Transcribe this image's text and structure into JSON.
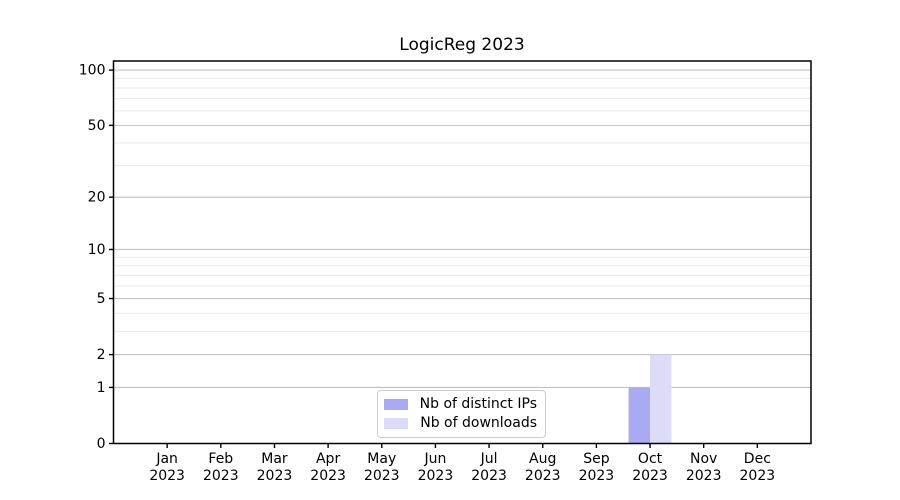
{
  "chart_data": {
    "type": "bar",
    "title": "LogicReg 2023",
    "categories": [
      "Jan",
      "Feb",
      "Mar",
      "Apr",
      "May",
      "Jun",
      "Jul",
      "Aug",
      "Sep",
      "Oct",
      "Nov",
      "Dec"
    ],
    "category_year": "2023",
    "series": [
      {
        "name": "Nb of distinct IPs",
        "color": "#aaaaf2",
        "values": [
          0,
          0,
          0,
          0,
          0,
          0,
          0,
          0,
          0,
          1,
          0,
          0
        ]
      },
      {
        "name": "Nb of downloads",
        "color": "#dcdcf8",
        "values": [
          0,
          0,
          0,
          0,
          0,
          0,
          0,
          0,
          0,
          2,
          0,
          0
        ]
      }
    ],
    "yscale": "log1p",
    "ylim": [
      0,
      112
    ],
    "yticks_major": [
      0,
      1,
      2,
      5,
      10,
      20,
      50,
      100
    ],
    "yticks_minor": [
      3,
      4,
      6,
      7,
      8,
      9,
      30,
      40,
      60,
      70,
      80,
      90
    ],
    "grid": "horizontal-only",
    "legend_position": "lower center",
    "colors": {
      "grid_major": "#c2c2c2",
      "grid_minor": "#e9e9e9",
      "spine": "#000000",
      "tick": "#000000",
      "text": "#000000",
      "background": "#ffffff"
    }
  }
}
